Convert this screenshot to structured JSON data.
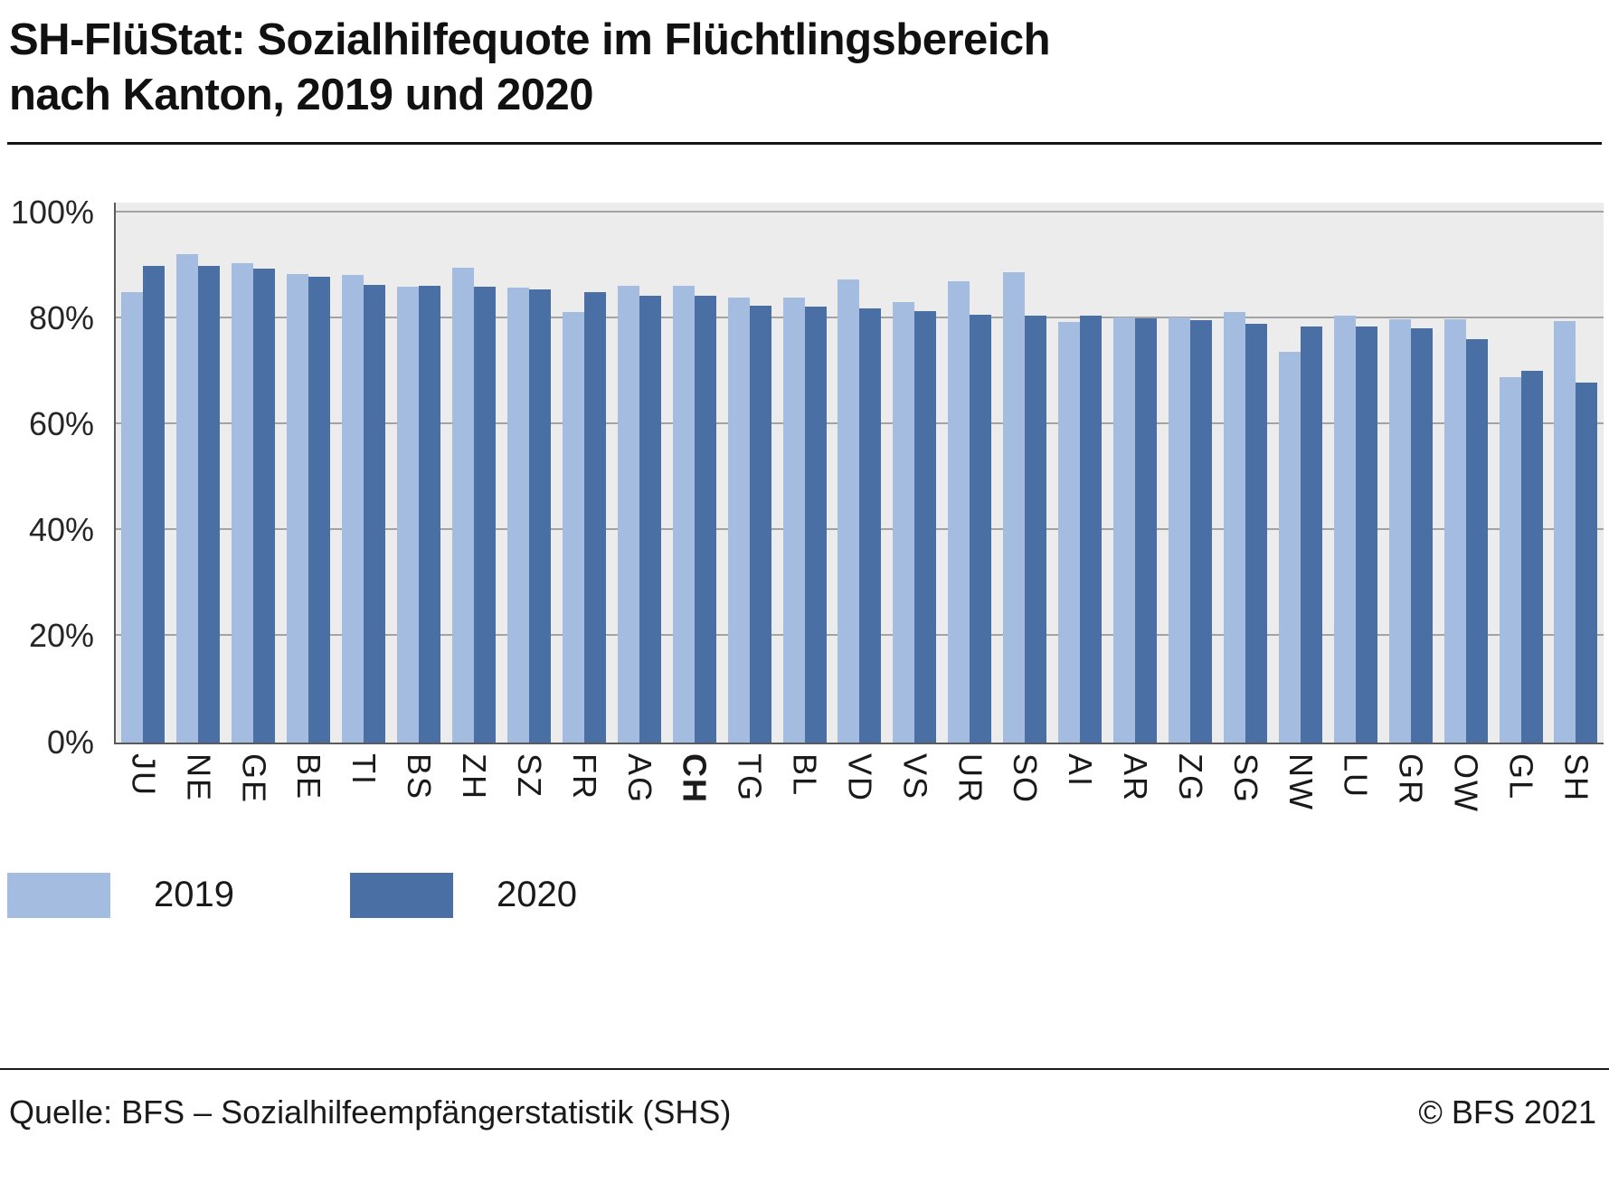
{
  "title": {
    "line1": "SH-FlüStat: Sozialhilfequote im Flüchtlingsbereich",
    "line2": "nach Kanton, 2019 und 2020"
  },
  "footer": {
    "source": "Quelle: BFS – Sozialhilfeempfängerstatistik (SHS)",
    "copyright": "© BFS 2021"
  },
  "colors": {
    "series_2019": "#a3bcdf",
    "series_2020": "#4a6fa5",
    "plot_background": "#ececec",
    "gridline": "#a3a3a3",
    "axis": "#5a5a5a"
  },
  "chart_data": {
    "type": "bar",
    "title": "SH-FlüStat: Sozialhilfequote im Flüchtlingsbereich nach Kanton, 2019 und 2020",
    "categories": [
      "JU",
      "NE",
      "GE",
      "BE",
      "TI",
      "BS",
      "ZH",
      "SZ",
      "FR",
      "AG",
      "CH",
      "TG",
      "BL",
      "VD",
      "VS",
      "UR",
      "SO",
      "AI",
      "AR",
      "ZG",
      "SG",
      "NW",
      "LU",
      "GR",
      "OW",
      "GL",
      "SH"
    ],
    "emphasized_category": "CH",
    "series": [
      {
        "name": "2019",
        "color": "#a3bcdf",
        "values": [
          85.0,
          92.1,
          90.4,
          88.4,
          88.2,
          86.0,
          89.7,
          85.8,
          81.2,
          86.2,
          86.2,
          83.9,
          83.9,
          87.4,
          83.2,
          87.0,
          88.7,
          79.3,
          80.3,
          80.3,
          81.2,
          73.8,
          80.5,
          79.8,
          79.8,
          68.9,
          79.5
        ]
      },
      {
        "name": "2020",
        "color": "#4a6fa5",
        "values": [
          90.0,
          89.9,
          89.4,
          87.9,
          86.3,
          86.2,
          86.0,
          85.5,
          85.0,
          84.4,
          84.3,
          82.4,
          82.2,
          81.9,
          81.4,
          80.7,
          80.5,
          80.5,
          80.0,
          79.7,
          79.1,
          78.5,
          78.5,
          78.1,
          76.1,
          70.1,
          67.9
        ]
      }
    ],
    "xlabel": "",
    "ylabel": "",
    "ylim": [
      0,
      100
    ],
    "yticks": [
      "0%",
      "20%",
      "40%",
      "60%",
      "80%",
      "100%"
    ],
    "grid": "horizontal",
    "legend_position": "bottom-left"
  }
}
